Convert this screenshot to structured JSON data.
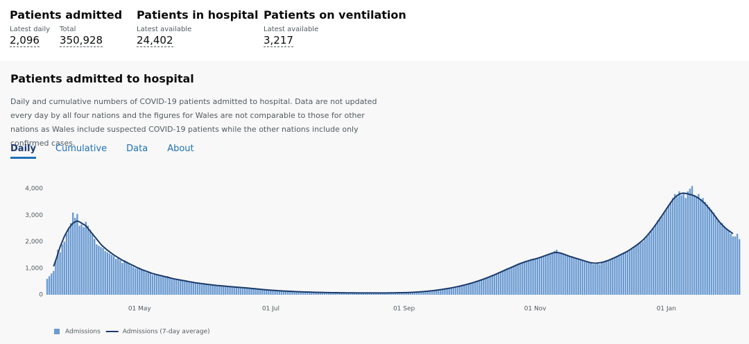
{
  "headlines": [
    {
      "title": "Patients admitted",
      "metrics": [
        {
          "label": "Latest daily",
          "value": "2,096"
        },
        {
          "label": "Total",
          "value": "350,928"
        }
      ]
    },
    {
      "title": "Patients in hospital",
      "metrics": [
        {
          "label": "Latest available",
          "value": "24,402"
        }
      ]
    },
    {
      "title": "Patients on ventilation",
      "metrics": [
        {
          "label": "Latest available",
          "value": "3,217"
        }
      ]
    }
  ],
  "card": {
    "title": "Patients admitted to hospital",
    "description": "Daily and cumulative numbers of COVID-19 patients admitted to hospital. Data are not updated every day by all four nations and the figures for Wales are not comparable to those for other nations as Wales include suspected COVID-19 patients while the other nations include only confirmed cases.",
    "tabs": [
      "Daily",
      "Cumulative",
      "Data",
      "About"
    ]
  },
  "chart_data": {
    "type": "bar",
    "categories": [
      null,
      null,
      null,
      null,
      null,
      null,
      null,
      null,
      null,
      null,
      null,
      null,
      null,
      null,
      null,
      null,
      null,
      null,
      null,
      null,
      null,
      null,
      null,
      null,
      null,
      null,
      null,
      null,
      null,
      null,
      null,
      null,
      null,
      null,
      null,
      null,
      null,
      null,
      null,
      null,
      null,
      null,
      null,
      "01 May",
      null,
      null,
      null,
      null,
      null,
      null,
      null,
      null,
      null,
      null,
      null,
      null,
      null,
      null,
      null,
      null,
      null,
      null,
      null,
      null,
      null,
      null,
      null,
      null,
      null,
      null,
      null,
      null,
      null,
      null,
      null,
      null,
      null,
      null,
      null,
      null,
      null,
      null,
      null,
      null,
      null,
      null,
      null,
      null,
      null,
      null,
      null,
      null,
      null,
      null,
      null,
      null,
      null,
      null,
      null,
      null,
      null,
      null,
      null,
      null,
      "01 Jul",
      null,
      null,
      null,
      null,
      null,
      null,
      null,
      null,
      null,
      null,
      null,
      null,
      null,
      null,
      null,
      null,
      null,
      null,
      null,
      null,
      null,
      null,
      null,
      null,
      null,
      null,
      null,
      null,
      null,
      null,
      null,
      null,
      null,
      null,
      null,
      null,
      null,
      null,
      null,
      null,
      null,
      null,
      null,
      null,
      null,
      null,
      null,
      null,
      null,
      null,
      null,
      null,
      null,
      null,
      null,
      null,
      null,
      null,
      null,
      null,
      null,
      "01 Sep",
      null,
      null,
      null,
      null,
      null,
      null,
      null,
      null,
      null,
      null,
      null,
      null,
      null,
      null,
      null,
      null,
      null,
      null,
      null,
      null,
      null,
      null,
      null,
      null,
      null,
      null,
      null,
      null,
      null,
      null,
      null,
      null,
      null,
      null,
      null,
      null,
      null,
      null,
      null,
      null,
      null,
      null,
      null,
      null,
      null,
      null,
      null,
      null,
      null,
      null,
      null,
      null,
      null,
      null,
      null,
      null,
      null,
      null,
      null,
      null,
      "01 Nov",
      null,
      null,
      null,
      null,
      null,
      null,
      null,
      null,
      null,
      null,
      null,
      null,
      null,
      null,
      null,
      null,
      null,
      null,
      null,
      null,
      null,
      null,
      null,
      null,
      null,
      null,
      null,
      null,
      null,
      null,
      null,
      null,
      null,
      null,
      null,
      null,
      null,
      null,
      null,
      null,
      null,
      null,
      null,
      null,
      null,
      null,
      null,
      null,
      null,
      null,
      null,
      null,
      null,
      null,
      null,
      null,
      null,
      null,
      null,
      null,
      "01 Jan",
      null,
      null,
      null,
      null,
      null,
      null,
      null,
      null,
      null,
      null,
      null,
      null,
      null,
      null,
      null,
      null,
      null,
      null,
      null,
      null,
      null,
      null,
      null,
      null,
      null,
      null,
      null,
      null,
      null,
      null,
      null,
      null,
      null,
      null
    ],
    "series": [
      {
        "name": "Admissions",
        "type": "bar",
        "color": "#6b9bd2",
        "values": [
          600,
          700,
          800,
          900,
          1300,
          1700,
          1600,
          1900,
          2000,
          2300,
          2500,
          2700,
          3100,
          2900,
          3050,
          2600,
          2650,
          2550,
          2750,
          2600,
          2450,
          2300,
          2100,
          1900,
          1850,
          1800,
          1750,
          1650,
          1600,
          1550,
          1500,
          1450,
          1350,
          1400,
          1300,
          1200,
          1300,
          1250,
          1150,
          1100,
          1050,
          1000,
          1000,
          1000,
          950,
          900,
          850,
          850,
          800,
          750,
          800,
          750,
          720,
          700,
          680,
          660,
          700,
          650,
          620,
          600,
          580,
          560,
          540,
          520,
          500,
          540,
          480,
          470,
          460,
          440,
          430,
          420,
          410,
          440,
          400,
          390,
          380,
          370,
          360,
          350,
          350,
          340,
          330,
          350,
          320,
          310,
          300,
          300,
          290,
          280,
          280,
          270,
          260,
          270,
          250,
          240,
          230,
          220,
          210,
          200,
          200,
          190,
          180,
          190,
          170,
          160,
          160,
          150,
          150,
          140,
          140,
          140,
          130,
          130,
          120,
          120,
          120,
          110,
          110,
          110,
          100,
          100,
          100,
          95,
          95,
          90,
          90,
          90,
          85,
          85,
          85,
          80,
          80,
          80,
          80,
          75,
          75,
          75,
          75,
          70,
          70,
          70,
          70,
          70,
          70,
          70,
          70,
          70,
          70,
          70,
          70,
          70,
          70,
          70,
          70,
          70,
          70,
          70,
          70,
          70,
          75,
          75,
          75,
          75,
          80,
          80,
          80,
          85,
          85,
          90,
          90,
          100,
          100,
          110,
          110,
          120,
          130,
          130,
          140,
          150,
          160,
          170,
          180,
          190,
          200,
          210,
          220,
          240,
          250,
          260,
          280,
          300,
          320,
          340,
          360,
          380,
          400,
          420,
          450,
          480,
          500,
          530,
          560,
          590,
          620,
          650,
          680,
          720,
          760,
          800,
          840,
          880,
          920,
          960,
          1000,
          1030,
          1060,
          1100,
          1140,
          1180,
          1200,
          1230,
          1260,
          1280,
          1300,
          1320,
          1340,
          1350,
          1380,
          1400,
          1420,
          1450,
          1480,
          1500,
          1550,
          1600,
          1650,
          1700,
          1600,
          1550,
          1550,
          1500,
          1480,
          1450,
          1450,
          1400,
          1380,
          1350,
          1300,
          1280,
          1250,
          1230,
          1200,
          1180,
          1150,
          1150,
          1200,
          1150,
          1200,
          1250,
          1300,
          1320,
          1350,
          1380,
          1420,
          1450,
          1480,
          1520,
          1560,
          1600,
          1650,
          1700,
          1750,
          1800,
          1850,
          1900,
          1950,
          2000,
          2100,
          2200,
          2300,
          2400,
          2500,
          2650,
          2800,
          2900,
          2950,
          3100,
          3200,
          3350,
          3500,
          3650,
          3800,
          3700,
          3900,
          3750,
          3800,
          3650,
          3900,
          4000,
          4100,
          3750,
          3700,
          3800,
          3600,
          3650,
          3500,
          3400,
          3300,
          3200,
          3100,
          2950,
          2800,
          2700,
          2700,
          2600,
          2500,
          2400,
          2300,
          2200,
          2200,
          2300,
          2096
        ]
      },
      {
        "name": "Admissions (7-day average)",
        "type": "line",
        "color": "#1b3a6b",
        "values": [
          null,
          null,
          null,
          1070,
          1300,
          1550,
          1800,
          2000,
          2200,
          2350,
          2500,
          2600,
          2700,
          2750,
          2780,
          2750,
          2700,
          2650,
          2600,
          2500,
          2400,
          2300,
          2200,
          2100,
          2000,
          1900,
          1820,
          1750,
          1680,
          1620,
          1560,
          1500,
          1450,
          1400,
          1350,
          1300,
          1260,
          1220,
          1180,
          1140,
          1100,
          1060,
          1020,
          990,
          950,
          920,
          890,
          860,
          830,
          800,
          780,
          760,
          740,
          720,
          700,
          680,
          660,
          640,
          620,
          600,
          585,
          570,
          555,
          540,
          525,
          510,
          495,
          480,
          465,
          450,
          440,
          430,
          420,
          410,
          400,
          390,
          380,
          370,
          360,
          350,
          345,
          338,
          330,
          322,
          315,
          308,
          300,
          294,
          288,
          281,
          275,
          268,
          261,
          254,
          247,
          240,
          232,
          224,
          216,
          208,
          200,
          193,
          186,
          180,
          174,
          168,
          162,
          157,
          152,
          147,
          142,
          138,
          134,
          130,
          126,
          122,
          118,
          115,
          112,
          109,
          106,
          103,
          100,
          97,
          95,
          93,
          91,
          89,
          87,
          85,
          83,
          81,
          80,
          79,
          78,
          77,
          76,
          75,
          74,
          73,
          72,
          72,
          71,
          71,
          70,
          70,
          70,
          70,
          70,
          70,
          70,
          70,
          70,
          70,
          70,
          70,
          70,
          70,
          70,
          71,
          72,
          73,
          74,
          75,
          77,
          79,
          81,
          83,
          86,
          89,
          93,
          97,
          102,
          107,
          113,
          120,
          127,
          135,
          143,
          152,
          161,
          171,
          182,
          193,
          205,
          218,
          232,
          246,
          260,
          276,
          292,
          309,
          327,
          346,
          366,
          387,
          409,
          432,
          456,
          481,
          507,
          534,
          562,
          591,
          621,
          652,
          684,
          717,
          751,
          786,
          822,
          858,
          894,
          930,
          966,
          1000,
          1035,
          1070,
          1105,
          1140,
          1175,
          1205,
          1235,
          1260,
          1285,
          1310,
          1330,
          1350,
          1375,
          1400,
          1425,
          1455,
          1485,
          1515,
          1545,
          1570,
          1590,
          1595,
          1585,
          1565,
          1540,
          1510,
          1480,
          1450,
          1425,
          1400,
          1375,
          1350,
          1325,
          1300,
          1275,
          1250,
          1225,
          1205,
          1195,
          1190,
          1195,
          1205,
          1220,
          1240,
          1265,
          1295,
          1330,
          1365,
          1400,
          1440,
          1480,
          1520,
          1560,
          1600,
          1645,
          1695,
          1750,
          1805,
          1860,
          1920,
          1985,
          2055,
          2135,
          2225,
          2320,
          2420,
          2525,
          2635,
          2750,
          2870,
          2990,
          3110,
          3230,
          3350,
          3470,
          3580,
          3670,
          3740,
          3790,
          3820,
          3830,
          3820,
          3800,
          3780,
          3760,
          3730,
          3690,
          3640,
          3580,
          3510,
          3430,
          3340,
          3240,
          3140,
          3040,
          2930,
          2820,
          2720,
          2630,
          2550,
          2480,
          2420,
          2360,
          2300,
          null,
          null,
          null
        ]
      }
    ],
    "ylim": [
      0,
      4200
    ],
    "yticks": [
      0,
      {
        "value": 1000,
        "label": "1,000"
      },
      {
        "value": 2000,
        "label": "2,000"
      },
      {
        "value": 3000,
        "label": "3,000"
      },
      {
        "value": 4000,
        "label": "4,000"
      }
    ],
    "grid": false,
    "legend": "bottom-left"
  }
}
